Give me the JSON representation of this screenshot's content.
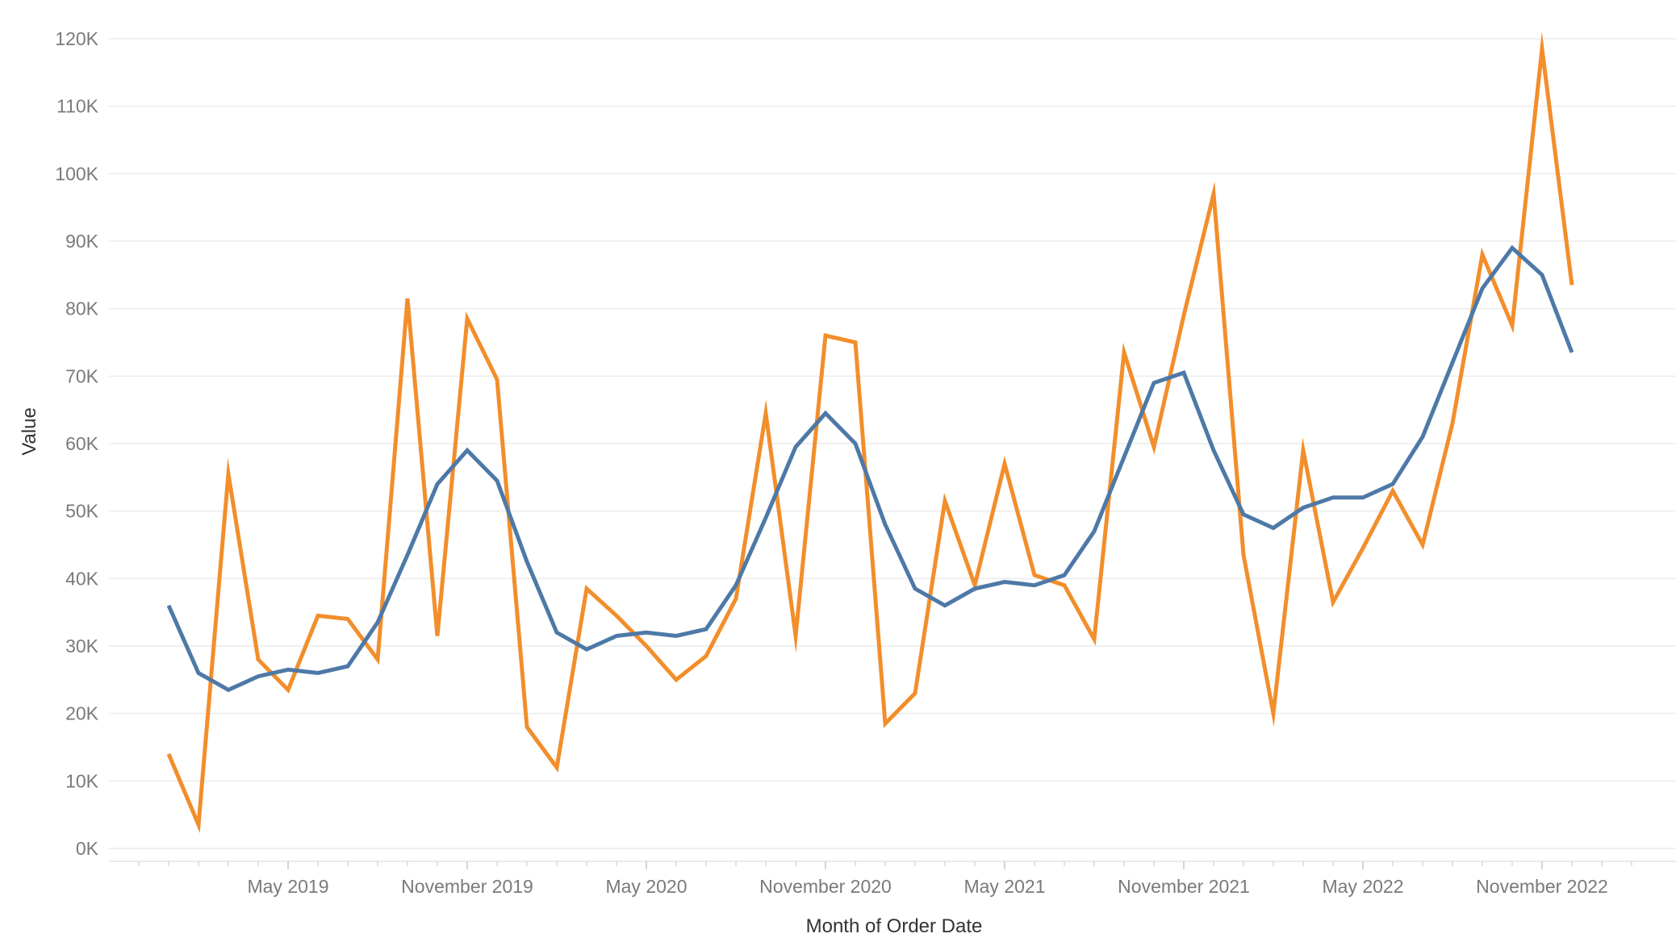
{
  "chart_data": {
    "type": "line",
    "xlabel": "Month of Order Date",
    "ylabel": "Value",
    "ylim": [
      0,
      120000
    ],
    "y_ticks": [
      0,
      10000,
      20000,
      30000,
      40000,
      50000,
      60000,
      70000,
      80000,
      90000,
      100000,
      110000,
      120000
    ],
    "y_tick_labels": [
      "0K",
      "10K",
      "20K",
      "30K",
      "40K",
      "50K",
      "60K",
      "70K",
      "80K",
      "90K",
      "100K",
      "110K",
      "120K"
    ],
    "x_tick_labels": [
      "May 2019",
      "November 2019",
      "May 2020",
      "November 2020",
      "May 2021",
      "November 2021",
      "May 2022",
      "November 2022"
    ],
    "x_tick_months": [
      "2019-05",
      "2019-11",
      "2020-05",
      "2020-11",
      "2021-05",
      "2021-11",
      "2022-05",
      "2022-11"
    ],
    "x_range": [
      "2018-11",
      "2023-02"
    ],
    "grid": true,
    "x": [
      "2019-01",
      "2019-02",
      "2019-03",
      "2019-04",
      "2019-05",
      "2019-06",
      "2019-07",
      "2019-08",
      "2019-09",
      "2019-10",
      "2019-11",
      "2019-12",
      "2020-01",
      "2020-02",
      "2020-03",
      "2020-04",
      "2020-05",
      "2020-06",
      "2020-07",
      "2020-08",
      "2020-09",
      "2020-10",
      "2020-11",
      "2020-12",
      "2021-01",
      "2021-02",
      "2021-03",
      "2021-04",
      "2021-05",
      "2021-06",
      "2021-07",
      "2021-08",
      "2021-09",
      "2021-10",
      "2021-11",
      "2021-12",
      "2022-01",
      "2022-02",
      "2022-03",
      "2022-04",
      "2022-05",
      "2022-06",
      "2022-07",
      "2022-08",
      "2022-09",
      "2022-10",
      "2022-11",
      "2022-12"
    ],
    "series": [
      {
        "color": "#f28e2b",
        "values": [
          14000,
          3500,
          55500,
          28000,
          23500,
          34500,
          34000,
          28000,
          81500,
          31500,
          78500,
          69500,
          18000,
          12000,
          38500,
          34500,
          30000,
          25000,
          28500,
          37000,
          64500,
          31500,
          76000,
          75000,
          18500,
          23000,
          51500,
          39000,
          57000,
          40500,
          39000,
          31000,
          73500,
          59500,
          79000,
          97000,
          43500,
          20000,
          59000,
          36500,
          44500,
          53000,
          45000,
          63000,
          88000,
          77500,
          118500,
          83500
        ]
      },
      {
        "color": "#4e79a7",
        "values": [
          36000,
          26000,
          23500,
          25500,
          26500,
          26000,
          27000,
          33500,
          43500,
          54000,
          59000,
          54500,
          42500,
          32000,
          29500,
          31500,
          32000,
          31500,
          32500,
          39000,
          49000,
          59500,
          64500,
          60000,
          48000,
          38500,
          36000,
          38500,
          39500,
          39000,
          40500,
          47000,
          58000,
          69000,
          70500,
          59000,
          49500,
          47500,
          50500,
          52000,
          52000,
          54000,
          61000,
          72000,
          83000,
          89000,
          85000,
          73500
        ]
      }
    ]
  }
}
